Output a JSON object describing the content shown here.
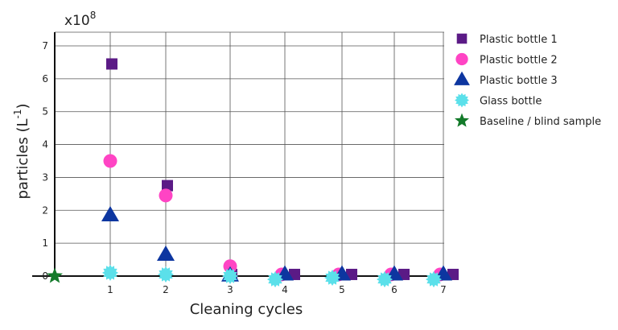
{
  "chart_data": {
    "type": "scatter",
    "title": "",
    "xlabel": "Cleaning cycles",
    "ylabel": "particles (L",
    "ylabel_exp": "-1",
    "ylabel_close": ")",
    "multiplier_label": "x10",
    "multiplier_exp": "8",
    "x_ticks": [
      "1",
      "2",
      "3",
      "4",
      "5",
      "6",
      "7"
    ],
    "y_ticks": [
      "0",
      "1",
      "2",
      "3",
      "4",
      "5",
      "6",
      "7"
    ],
    "xlim": [
      0,
      7
    ],
    "ylim": [
      0,
      7.6
    ],
    "grid": true,
    "legend_position": "right",
    "series": [
      {
        "name": "Plastic bottle 1",
        "marker": "square",
        "color": "#5b1a86",
        "x": [
          1,
          2,
          3,
          4,
          5,
          6,
          7
        ],
        "y": [
          6.45,
          2.75,
          0.05,
          0.05,
          0.05,
          0.05,
          0.05
        ]
      },
      {
        "name": "Plastic bottle 2",
        "marker": "circle",
        "color": "#ff44c4",
        "x": [
          1,
          2,
          3,
          4,
          5,
          6,
          7
        ],
        "y": [
          3.5,
          2.45,
          0.3,
          0.05,
          0.05,
          0.05,
          0.05
        ]
      },
      {
        "name": "Plastic bottle 3",
        "marker": "triangle",
        "color": "#0d36a0",
        "x": [
          1,
          2,
          3,
          4,
          5,
          6,
          7
        ],
        "y": [
          1.85,
          0.65,
          0.02,
          0.05,
          0.05,
          0.05,
          0.05
        ]
      },
      {
        "name": "Glass bottle",
        "marker": "starburst",
        "color": "#5be0ea",
        "x": [
          1,
          2,
          3,
          4,
          5,
          6,
          7
        ],
        "y": [
          0.1,
          0.05,
          0.0,
          -0.1,
          -0.05,
          -0.1,
          -0.1
        ]
      },
      {
        "name": "Baseline / blind sample",
        "marker": "star",
        "color": "#137a2a",
        "x": [
          0
        ],
        "y": [
          0.0
        ]
      }
    ]
  }
}
